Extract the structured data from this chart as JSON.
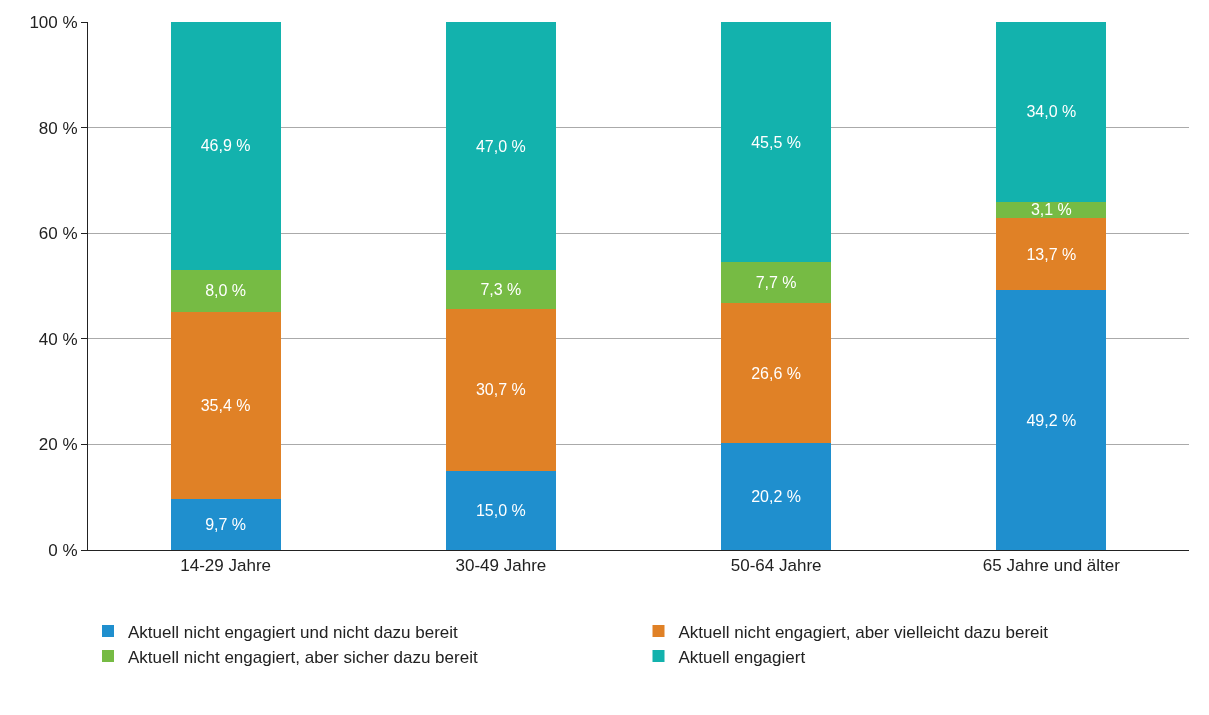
{
  "chart_data": {
    "type": "bar",
    "stacked": true,
    "categories": [
      "14-29 Jahre",
      "30-49 Jahre",
      "50-64 Jahre",
      "65 Jahre und älter"
    ],
    "series": [
      {
        "name": "Aktuell nicht engagiert und nicht dazu bereit",
        "color": "#1f8fce",
        "values": [
          9.7,
          15.0,
          20.2,
          49.2
        ],
        "value_labels": [
          "9,7 %",
          "15,0 %",
          "20,2 %",
          "49,2 %"
        ]
      },
      {
        "name": "Aktuell nicht engagiert, aber vielleicht dazu bereit",
        "color": "#e08126",
        "values": [
          35.4,
          30.7,
          26.6,
          13.7
        ],
        "value_labels": [
          "35,4 %",
          "30,7 %",
          "26,6 %",
          "13,7 %"
        ]
      },
      {
        "name": "Aktuell nicht engagiert, aber sicher dazu bereit",
        "color": "#76bb44",
        "values": [
          8.0,
          7.3,
          7.7,
          3.1
        ],
        "value_labels": [
          "8,0 %",
          "7,3 %",
          "7,7 %",
          "3,1 %"
        ]
      },
      {
        "name": "Aktuell engagiert",
        "color": "#13b2ad",
        "values": [
          46.9,
          47.0,
          45.5,
          34.0
        ],
        "value_labels": [
          "46,9 %",
          "47,0 %",
          "45,5 %",
          "34,0 %"
        ]
      }
    ],
    "ylim": [
      0,
      100
    ],
    "yticks": [
      {
        "value": 0,
        "label": "0 %"
      },
      {
        "value": 20,
        "label": "20 %"
      },
      {
        "value": 40,
        "label": "40 %"
      },
      {
        "value": 60,
        "label": "60 %"
      },
      {
        "value": 80,
        "label": "80 %"
      },
      {
        "value": 100,
        "label": "100 %"
      }
    ],
    "grid": "y",
    "legend": "bottom"
  }
}
